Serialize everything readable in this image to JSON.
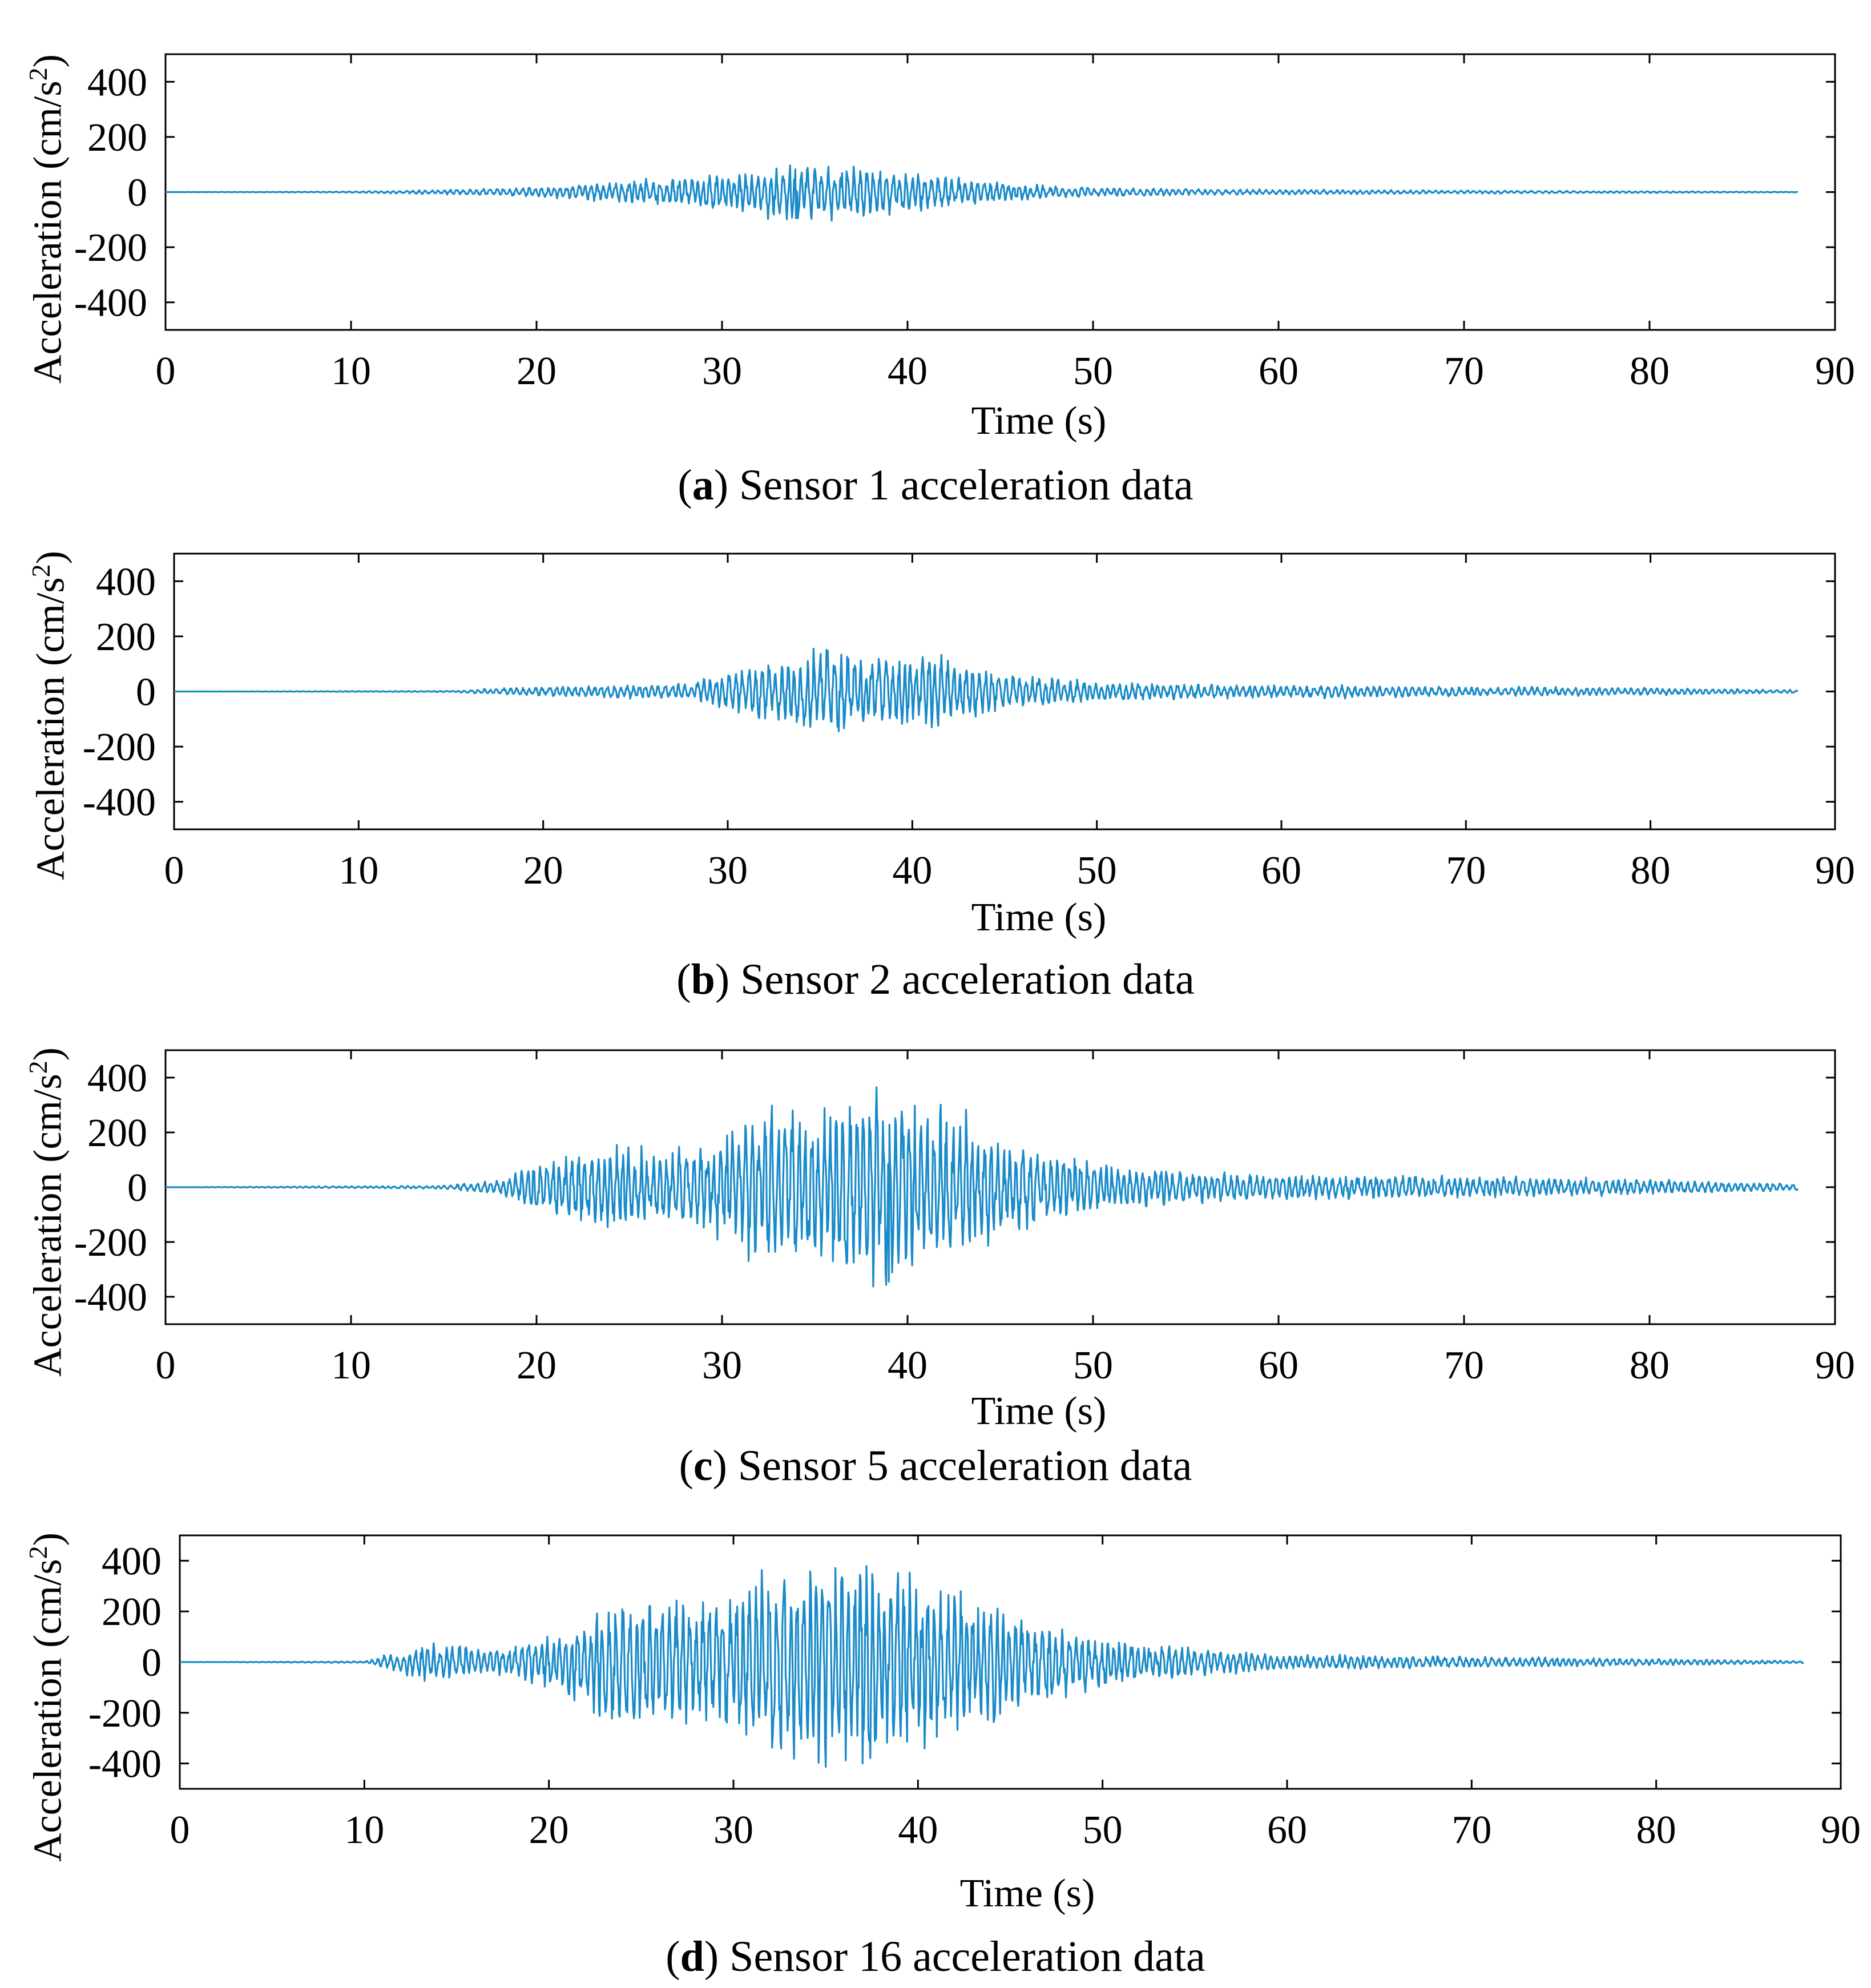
{
  "figure": {
    "panels": [
      {
        "letter": "a",
        "caption_rest": ") Sensor 1 acceleration data"
      },
      {
        "letter": "b",
        "caption_rest": ") Sensor 2 acceleration data"
      },
      {
        "letter": "c",
        "caption_rest": ") Sensor 5 acceleration data"
      },
      {
        "letter": "d",
        "caption_rest": ") Sensor 16 acceleration data"
      }
    ],
    "caption_open": "(",
    "ylabel_main": "Acceleration (cm/s",
    "ylabel_sup": "2",
    "ylabel_close": ")",
    "xlabel": "Time (s)"
  },
  "style": {
    "line_color": "#1a8bc9",
    "axis_color": "#000000"
  },
  "chart_data": [
    {
      "type": "line",
      "title": "(a) Sensor 1 acceleration data",
      "xlabel": "Time (s)",
      "ylabel": "Acceleration (cm/s2)",
      "xlim": [
        0,
        90
      ],
      "ylim": [
        -500,
        500
      ],
      "xticks": [
        0,
        10,
        20,
        30,
        40,
        50,
        60,
        70,
        80,
        90
      ],
      "yticks": [
        400,
        200,
        0,
        -200,
        -400
      ],
      "duration_s": 88,
      "peak_acceleration": 95,
      "peak_time_s": 34,
      "envelope": [
        [
          0,
          0
        ],
        [
          10,
          2
        ],
        [
          15,
          8
        ],
        [
          20,
          15
        ],
        [
          25,
          35
        ],
        [
          30,
          60
        ],
        [
          34,
          95
        ],
        [
          38,
          75
        ],
        [
          42,
          50
        ],
        [
          46,
          25
        ],
        [
          50,
          15
        ],
        [
          55,
          10
        ],
        [
          60,
          8
        ],
        [
          70,
          5
        ],
        [
          80,
          3
        ],
        [
          88,
          1
        ]
      ],
      "series": [
        {
          "name": "Sensor 1",
          "seed": 11
        }
      ]
    },
    {
      "type": "line",
      "title": "(b) Sensor 2 acceleration data",
      "xlabel": "Time (s)",
      "ylabel": "Acceleration (cm/s2)",
      "xlim": [
        0,
        90
      ],
      "ylim": [
        -500,
        500
      ],
      "xticks": [
        0,
        10,
        20,
        30,
        40,
        50,
        60,
        70,
        80,
        90
      ],
      "yticks": [
        400,
        200,
        0,
        -200,
        -400
      ],
      "duration_s": 88,
      "peak_acceleration": 145,
      "peak_time_s": 36,
      "envelope": [
        [
          0,
          0
        ],
        [
          15,
          2
        ],
        [
          18,
          12
        ],
        [
          22,
          18
        ],
        [
          28,
          25
        ],
        [
          31,
          80
        ],
        [
          35,
          140
        ],
        [
          38,
          110
        ],
        [
          41,
          120
        ],
        [
          45,
          60
        ],
        [
          50,
          30
        ],
        [
          55,
          25
        ],
        [
          60,
          20
        ],
        [
          65,
          20
        ],
        [
          70,
          15
        ],
        [
          80,
          12
        ],
        [
          88,
          5
        ]
      ],
      "series": [
        {
          "name": "Sensor 2",
          "seed": 23
        }
      ]
    },
    {
      "type": "line",
      "title": "(c) Sensor 5 acceleration data",
      "xlabel": "Time (s)",
      "ylabel": "Acceleration (cm/s2)",
      "xlim": [
        0,
        90
      ],
      "ylim": [
        -500,
        500
      ],
      "xticks": [
        0,
        10,
        20,
        30,
        40,
        50,
        60,
        70,
        80,
        90
      ],
      "yticks": [
        400,
        200,
        0,
        -200,
        -400
      ],
      "duration_s": 88,
      "peak_acceleration": 345,
      "peak_time_s": 39,
      "envelope": [
        [
          0,
          0
        ],
        [
          15,
          5
        ],
        [
          18,
          25
        ],
        [
          20,
          80
        ],
        [
          24,
          140
        ],
        [
          28,
          120
        ],
        [
          30,
          170
        ],
        [
          32,
          260
        ],
        [
          35,
          220
        ],
        [
          37,
          300
        ],
        [
          39,
          345
        ],
        [
          41,
          250
        ],
        [
          43,
          230
        ],
        [
          45,
          150
        ],
        [
          50,
          80
        ],
        [
          55,
          50
        ],
        [
          60,
          40
        ],
        [
          65,
          40
        ],
        [
          70,
          35
        ],
        [
          80,
          25
        ],
        [
          88,
          10
        ]
      ],
      "series": [
        {
          "name": "Sensor 5",
          "seed": 37
        }
      ]
    },
    {
      "type": "line",
      "title": "(d) Sensor 16 acceleration data",
      "xlabel": "Time (s)",
      "ylabel": "Acceleration (cm/s2)",
      "xlim": [
        0,
        90
      ],
      "ylim": [
        -500,
        500
      ],
      "xticks": [
        0,
        10,
        20,
        30,
        40,
        50,
        60,
        70,
        80,
        90
      ],
      "yticks": [
        400,
        200,
        0,
        -200,
        -400
      ],
      "duration_s": 88,
      "peak_acceleration": 400,
      "peak_time_s": 37,
      "envelope": [
        [
          0,
          0
        ],
        [
          10,
          3
        ],
        [
          12,
          40
        ],
        [
          14,
          70
        ],
        [
          17,
          45
        ],
        [
          20,
          90
        ],
        [
          24,
          250
        ],
        [
          28,
          230
        ],
        [
          30,
          240
        ],
        [
          32,
          330
        ],
        [
          34,
          380
        ],
        [
          37,
          400
        ],
        [
          40,
          330
        ],
        [
          44,
          200
        ],
        [
          48,
          130
        ],
        [
          52,
          70
        ],
        [
          56,
          45
        ],
        [
          60,
          25
        ],
        [
          70,
          20
        ],
        [
          80,
          12
        ],
        [
          88,
          4
        ]
      ],
      "series": [
        {
          "name": "Sensor 16",
          "seed": 53
        }
      ]
    }
  ]
}
